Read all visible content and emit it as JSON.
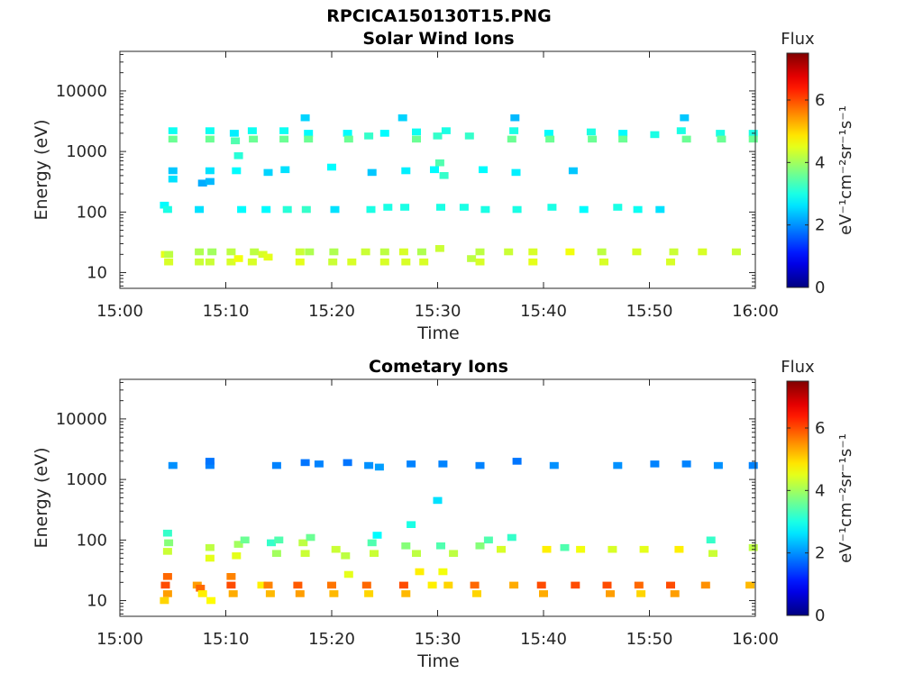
{
  "figure_title": "RPCICA150130T15.PNG",
  "colorbar": {
    "title": "Flux",
    "label": "eV⁻¹cm⁻²sr⁻¹s⁻¹",
    "ticks": [
      "0",
      "2",
      "4",
      "6"
    ],
    "range": [
      0,
      7.5
    ],
    "colormap": "jet"
  },
  "chart_data": [
    {
      "type": "heatmap",
      "title": "Solar Wind Ions",
      "xlabel": "Time",
      "ylabel": "Energy (eV)",
      "x_ticks": [
        "15:00",
        "15:10",
        "15:20",
        "15:30",
        "15:40",
        "15:50",
        "16:00"
      ],
      "y_ticks": [
        "10",
        "100",
        "1000",
        "10000"
      ],
      "x_range_min": [
        0,
        60
      ],
      "y_range_eV": [
        5.5,
        45000
      ],
      "y_scale": "log",
      "z_label": "Flux",
      "cells": [
        [
          4.3,
          20,
          4.5
        ],
        [
          4.6,
          20,
          4.2
        ],
        [
          4.6,
          15,
          4.4
        ],
        [
          4.2,
          130,
          2.8
        ],
        [
          4.5,
          110,
          3.0
        ],
        [
          5.0,
          2200,
          2.9
        ],
        [
          5.0,
          1600,
          3.6
        ],
        [
          5.0,
          480,
          2.4
        ],
        [
          5.0,
          350,
          2.6
        ],
        [
          7.5,
          110,
          2.6
        ],
        [
          7.5,
          22,
          4.1
        ],
        [
          7.5,
          15,
          4.3
        ],
        [
          7.8,
          300,
          2.2
        ],
        [
          8.5,
          2200,
          2.9
        ],
        [
          8.5,
          1600,
          3.6
        ],
        [
          8.5,
          480,
          2.6
        ],
        [
          8.5,
          320,
          2.3
        ],
        [
          8.7,
          22,
          4.0
        ],
        [
          8.5,
          15,
          4.3
        ],
        [
          10.5,
          22,
          4.2
        ],
        [
          10.5,
          15,
          4.4
        ],
        [
          10.8,
          2000,
          2.7
        ],
        [
          10.9,
          1500,
          3.4
        ],
        [
          11.0,
          480,
          2.8
        ],
        [
          11.2,
          850,
          3.1
        ],
        [
          11.5,
          110,
          2.8
        ],
        [
          11.2,
          17,
          4.6
        ],
        [
          12.5,
          2200,
          2.9
        ],
        [
          12.6,
          1600,
          3.6
        ],
        [
          12.7,
          22,
          4.2
        ],
        [
          12.5,
          15,
          4.4
        ],
        [
          13.5,
          20,
          4.4
        ],
        [
          14.0,
          18,
          4.5
        ],
        [
          13.8,
          110,
          2.8
        ],
        [
          14.0,
          450,
          2.5
        ],
        [
          15.5,
          2200,
          2.9
        ],
        [
          15.5,
          1600,
          3.6
        ],
        [
          15.6,
          500,
          2.6
        ],
        [
          15.8,
          110,
          3.1
        ],
        [
          17.0,
          22,
          4.3
        ],
        [
          17.0,
          15,
          4.5
        ],
        [
          17.8,
          2000,
          2.8
        ],
        [
          17.8,
          1600,
          3.6
        ],
        [
          17.5,
          3600,
          2.5
        ],
        [
          17.6,
          110,
          3.2
        ],
        [
          17.9,
          22,
          4.1
        ],
        [
          20.0,
          550,
          2.8
        ],
        [
          20.3,
          110,
          2.6
        ],
        [
          20.2,
          22,
          4.1
        ],
        [
          20.1,
          15,
          4.3
        ],
        [
          21.5,
          2000,
          2.8
        ],
        [
          21.6,
          1600,
          3.6
        ],
        [
          21.9,
          15,
          4.4
        ],
        [
          23.2,
          22,
          4.3
        ],
        [
          23.5,
          1800,
          3.2
        ],
        [
          23.7,
          110,
          3.0
        ],
        [
          23.8,
          450,
          2.4
        ],
        [
          25.0,
          2000,
          2.8
        ],
        [
          25.0,
          22,
          4.2
        ],
        [
          25.3,
          120,
          3.0
        ],
        [
          25.0,
          15,
          4.4
        ],
        [
          26.8,
          22,
          4.4
        ],
        [
          26.7,
          3600,
          2.5
        ],
        [
          26.9,
          120,
          3.0
        ],
        [
          27.0,
          480,
          2.7
        ],
        [
          27.0,
          15,
          4.4
        ],
        [
          28.0,
          2100,
          2.9
        ],
        [
          28.0,
          1600,
          3.6
        ],
        [
          28.5,
          22,
          4.1
        ],
        [
          28.7,
          15,
          4.4
        ],
        [
          29.7,
          500,
          2.8
        ],
        [
          30.0,
          1800,
          3.2
        ],
        [
          30.2,
          650,
          3.4
        ],
        [
          30.3,
          120,
          3.0
        ],
        [
          30.2,
          25,
          4.3
        ],
        [
          30.6,
          400,
          3.2
        ],
        [
          30.8,
          2200,
          3.0
        ],
        [
          32.5,
          120,
          3.0
        ],
        [
          33.0,
          1800,
          3.2
        ],
        [
          33.2,
          17,
          4.2
        ],
        [
          34.0,
          22,
          4.2
        ],
        [
          34.3,
          500,
          2.8
        ],
        [
          34.5,
          110,
          3.0
        ],
        [
          34.0,
          15,
          4.4
        ],
        [
          36.7,
          22,
          4.3
        ],
        [
          37.0,
          1600,
          3.6
        ],
        [
          37.2,
          2200,
          3.0
        ],
        [
          37.3,
          3600,
          2.3
        ],
        [
          37.4,
          450,
          2.7
        ],
        [
          37.5,
          110,
          3.0
        ],
        [
          39.0,
          22,
          4.4
        ],
        [
          39.0,
          15,
          4.5
        ],
        [
          40.5,
          2000,
          2.8
        ],
        [
          40.6,
          1600,
          3.6
        ],
        [
          40.8,
          120,
          3.0
        ],
        [
          42.5,
          22,
          4.6
        ],
        [
          42.8,
          480,
          2.4
        ],
        [
          43.8,
          110,
          2.8
        ],
        [
          44.5,
          2100,
          3.0
        ],
        [
          44.6,
          1600,
          3.6
        ],
        [
          45.5,
          22,
          4.2
        ],
        [
          45.7,
          15,
          4.4
        ],
        [
          47.0,
          120,
          3.0
        ],
        [
          47.5,
          2000,
          2.8
        ],
        [
          47.5,
          1600,
          3.6
        ],
        [
          48.8,
          22,
          4.4
        ],
        [
          48.9,
          110,
          2.9
        ],
        [
          50.5,
          1900,
          3.0
        ],
        [
          51.0,
          110,
          2.6
        ],
        [
          52.0,
          15,
          4.4
        ],
        [
          52.3,
          22,
          4.3
        ],
        [
          53.0,
          2200,
          3.0
        ],
        [
          53.3,
          3600,
          2.4
        ],
        [
          53.5,
          1600,
          3.6
        ],
        [
          55.0,
          22,
          4.4
        ],
        [
          56.7,
          2000,
          3.0
        ],
        [
          56.8,
          1600,
          3.6
        ],
        [
          58.2,
          22,
          4.3
        ],
        [
          59.8,
          2000,
          3.0
        ],
        [
          59.8,
          1600,
          3.6
        ]
      ]
    },
    {
      "type": "heatmap",
      "title": "Cometary Ions",
      "xlabel": "Time",
      "ylabel": "Energy (eV)",
      "x_ticks": [
        "15:00",
        "15:10",
        "15:20",
        "15:30",
        "15:40",
        "15:50",
        "16:00"
      ],
      "y_ticks": [
        "10",
        "100",
        "1000",
        "10000"
      ],
      "x_range_min": [
        0,
        60
      ],
      "y_range_eV": [
        5.5,
        45000
      ],
      "y_scale": "log",
      "z_label": "Flux",
      "cells": [
        [
          5.0,
          1700,
          2.0
        ],
        [
          8.5,
          1700,
          1.9
        ],
        [
          8.5,
          2000,
          1.8
        ],
        [
          14.8,
          1700,
          1.9
        ],
        [
          17.5,
          1900,
          1.8
        ],
        [
          18.8,
          1800,
          1.9
        ],
        [
          21.5,
          1900,
          1.8
        ],
        [
          23.5,
          1700,
          2.0
        ],
        [
          24.5,
          1600,
          2.1
        ],
        [
          27.5,
          1800,
          1.9
        ],
        [
          30.5,
          1800,
          1.9
        ],
        [
          34.0,
          1700,
          1.9
        ],
        [
          37.5,
          2000,
          1.8
        ],
        [
          41.0,
          1700,
          2.0
        ],
        [
          47.0,
          1700,
          2.0
        ],
        [
          50.5,
          1800,
          1.9
        ],
        [
          53.5,
          1800,
          1.9
        ],
        [
          56.5,
          1700,
          2.0
        ],
        [
          59.8,
          1700,
          1.9
        ],
        [
          4.3,
          18,
          6.0
        ],
        [
          4.5,
          13,
          5.4
        ],
        [
          4.2,
          10,
          5.0
        ],
        [
          4.5,
          25,
          5.8
        ],
        [
          4.5,
          65,
          4.3
        ],
        [
          4.6,
          90,
          3.8
        ],
        [
          4.5,
          130,
          3.2
        ],
        [
          7.3,
          18,
          5.4
        ],
        [
          7.6,
          16,
          5.8
        ],
        [
          7.8,
          13,
          4.8
        ],
        [
          8.5,
          75,
          4.2
        ],
        [
          8.5,
          50,
          4.5
        ],
        [
          8.6,
          10,
          4.7
        ],
        [
          10.5,
          18,
          6.0
        ],
        [
          10.7,
          13,
          5.3
        ],
        [
          10.5,
          25,
          5.6
        ],
        [
          11.0,
          55,
          4.5
        ],
        [
          11.2,
          85,
          4.0
        ],
        [
          11.8,
          100,
          3.6
        ],
        [
          13.4,
          18,
          4.8
        ],
        [
          14.0,
          18,
          5.6
        ],
        [
          14.2,
          13,
          5.2
        ],
        [
          14.3,
          90,
          3.2
        ],
        [
          14.8,
          60,
          4.0
        ],
        [
          15.0,
          100,
          3.4
        ],
        [
          16.8,
          18,
          5.9
        ],
        [
          17.0,
          13,
          5.4
        ],
        [
          17.3,
          90,
          4.2
        ],
        [
          17.5,
          60,
          4.3
        ],
        [
          18.0,
          110,
          3.6
        ],
        [
          20.0,
          18,
          5.7
        ],
        [
          20.2,
          13,
          5.2
        ],
        [
          20.4,
          70,
          4.3
        ],
        [
          21.3,
          55,
          4.2
        ],
        [
          21.6,
          27,
          4.5
        ],
        [
          23.3,
          18,
          5.8
        ],
        [
          23.5,
          13,
          5.0
        ],
        [
          23.8,
          90,
          3.4
        ],
        [
          24.0,
          60,
          4.3
        ],
        [
          24.3,
          120,
          2.8
        ],
        [
          26.8,
          18,
          6.0
        ],
        [
          27.0,
          13,
          5.2
        ],
        [
          27.0,
          80,
          3.8
        ],
        [
          27.5,
          180,
          3.0
        ],
        [
          28.0,
          60,
          4.2
        ],
        [
          28.3,
          30,
          4.8
        ],
        [
          29.5,
          18,
          4.8
        ],
        [
          30.3,
          80,
          3.4
        ],
        [
          30.5,
          30,
          4.6
        ],
        [
          30.0,
          450,
          2.6
        ],
        [
          31.5,
          60,
          4.2
        ],
        [
          31.0,
          18,
          5.0
        ],
        [
          33.5,
          18,
          5.8
        ],
        [
          33.7,
          13,
          5.0
        ],
        [
          34.0,
          80,
          3.8
        ],
        [
          34.8,
          100,
          3.4
        ],
        [
          36.0,
          70,
          4.4
        ],
        [
          37.0,
          110,
          3.2
        ],
        [
          37.2,
          18,
          5.3
        ],
        [
          39.8,
          18,
          6.0
        ],
        [
          40.0,
          13,
          5.3
        ],
        [
          40.3,
          70,
          4.8
        ],
        [
          42.0,
          75,
          3.4
        ],
        [
          43.0,
          18,
          6.0
        ],
        [
          43.5,
          70,
          4.6
        ],
        [
          46.0,
          18,
          6.0
        ],
        [
          46.3,
          13,
          5.4
        ],
        [
          46.5,
          70,
          4.4
        ],
        [
          49.0,
          18,
          5.8
        ],
        [
          49.2,
          13,
          5.0
        ],
        [
          49.5,
          70,
          4.5
        ],
        [
          52.0,
          18,
          6.0
        ],
        [
          52.4,
          13,
          5.4
        ],
        [
          52.8,
          70,
          4.8
        ],
        [
          55.3,
          18,
          5.5
        ],
        [
          55.8,
          100,
          3.2
        ],
        [
          56.0,
          60,
          4.3
        ],
        [
          59.5,
          18,
          5.2
        ],
        [
          59.8,
          75,
          4.2
        ]
      ]
    }
  ]
}
